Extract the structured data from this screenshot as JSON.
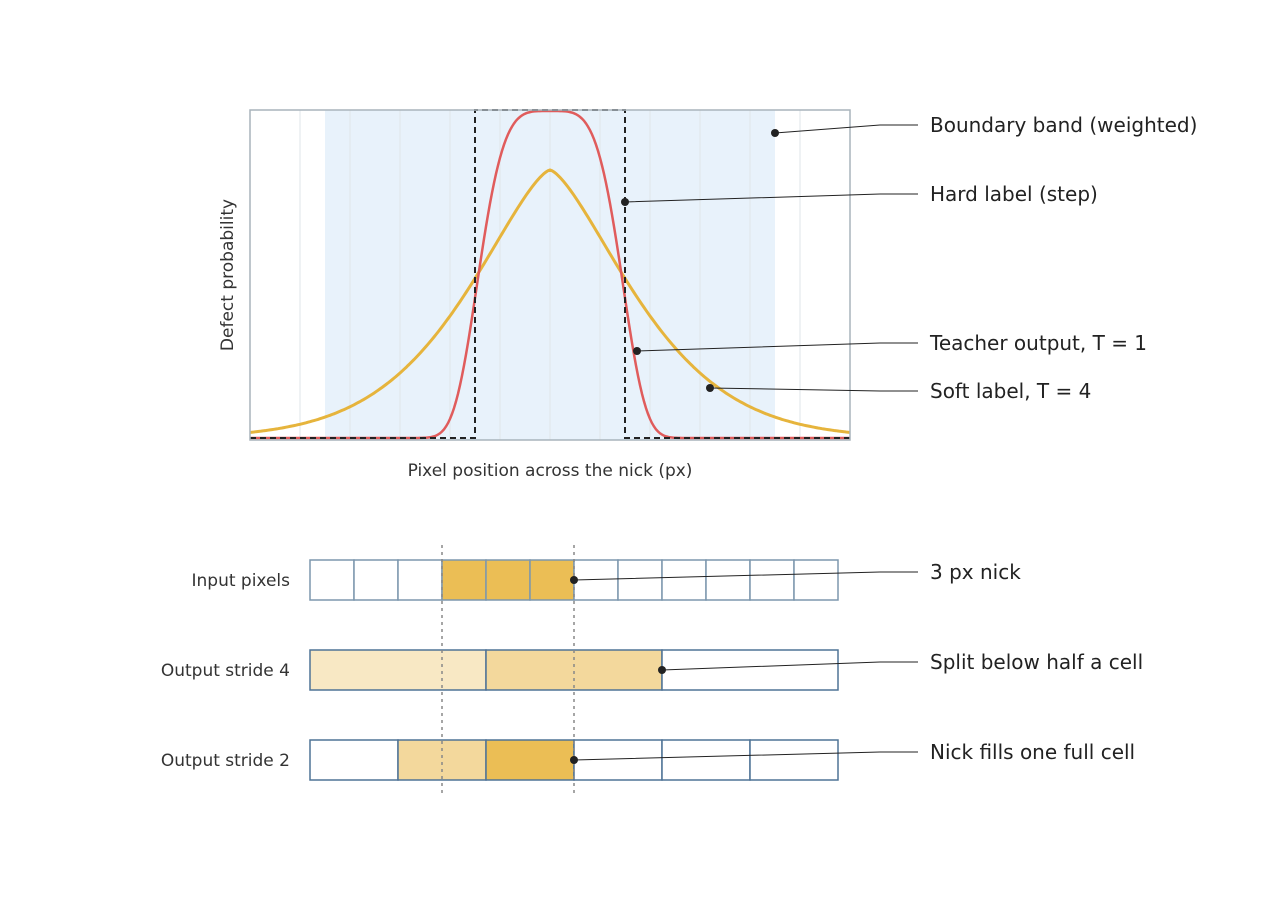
{
  "plot": {
    "xlabel": "Pixel position across the nick (px)",
    "ylabel": "Defect probability",
    "colors": {
      "band": "#e8f2fb",
      "hard_label": "#222222",
      "teacher": "#e05c5c",
      "soft": "#e6b43c",
      "frame": "#a9b4bc"
    }
  },
  "callouts": {
    "boundary_band": "Boundary band (weighted)",
    "hard_label": "Hard label (step)",
    "teacher_output": "Teacher output, T = 1",
    "soft_label": "Soft label, T = 4"
  },
  "grid": {
    "rows": {
      "input": "Input pixels",
      "stride4": "Output stride 4",
      "stride2": "Output stride 2"
    },
    "callouts": {
      "nick": "3 px nick",
      "split": "Split below half a cell",
      "fills": "Nick fills one full cell"
    },
    "input_cells": [
      0,
      0,
      0,
      1,
      1,
      1,
      0,
      0,
      0,
      0,
      0,
      0
    ],
    "stride4_cells": [
      0.3,
      0.5,
      0
    ],
    "stride2_cells": [
      0,
      0.5,
      1,
      0,
      0,
      0
    ],
    "colors": {
      "cell_border_input": "#7d97ad",
      "cell_border_output": "#4f7396",
      "fill_full": "#ebbe55",
      "fill_mid": "#f3d89c",
      "fill_light": "#f8e8c4",
      "guide": "#888888"
    }
  }
}
